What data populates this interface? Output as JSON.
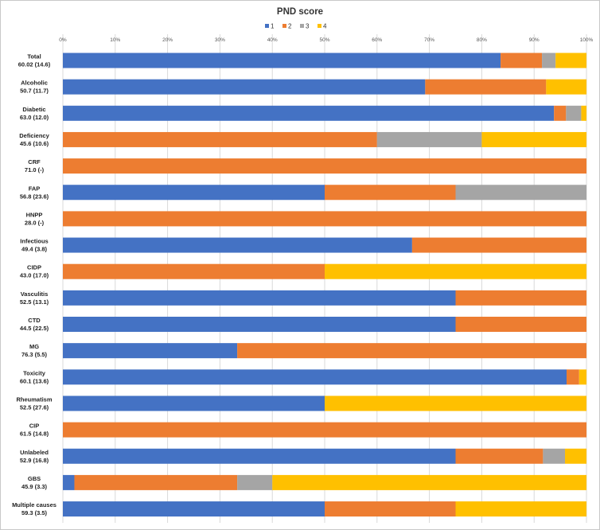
{
  "chart_data": {
    "type": "bar",
    "orientation": "horizontal",
    "stacked": true,
    "normalized": true,
    "title": "PND score",
    "xlabel": "",
    "ylabel": "",
    "xlim": [
      0,
      100
    ],
    "x_ticks": [
      "0%",
      "10%",
      "20%",
      "30%",
      "40%",
      "50%",
      "60%",
      "70%",
      "80%",
      "90%",
      "100%"
    ],
    "grid": true,
    "legend_position": "top",
    "colors": [
      "#4472C4",
      "#ED7D31",
      "#A5A5A5",
      "#FFC000"
    ],
    "categories": [
      {
        "name": "Total",
        "stat": "60.02 (14.6)"
      },
      {
        "name": "Alcoholic",
        "stat": "50.7 (11.7)"
      },
      {
        "name": "Diabetic",
        "stat": "63.0 (12.0)"
      },
      {
        "name": "Deficiency",
        "stat": "45.6 (10.6)"
      },
      {
        "name": "CRF",
        "stat": "71.0 (-)"
      },
      {
        "name": "FAP",
        "stat": "56.8 (23.6)"
      },
      {
        "name": "HNPP",
        "stat": "28.0 (-)"
      },
      {
        "name": "Infectious",
        "stat": "49.4 (3.8)"
      },
      {
        "name": "CIDP",
        "stat": "43.0 (17.0)"
      },
      {
        "name": "Vasculitis",
        "stat": "52.5 (13.1)"
      },
      {
        "name": "CTD",
        "stat": "44.5 (22.5)"
      },
      {
        "name": "MG",
        "stat": "76.3 (5.5)"
      },
      {
        "name": "Toxicity",
        "stat": "60.1 (13.6)"
      },
      {
        "name": "Rheumatism",
        "stat": "52.5 (27.6)"
      },
      {
        "name": "CIP",
        "stat": "61.5 (14.8)"
      },
      {
        "name": "Unlabeled",
        "stat": "52.9 (16.8)"
      },
      {
        "name": "GBS",
        "stat": "45.9 (3.3)"
      },
      {
        "name": "Multiple causes",
        "stat": "59.3 (3.5)"
      }
    ],
    "series": [
      {
        "name": "1",
        "values": [
          83.6,
          69.2,
          93.8,
          0,
          0,
          50,
          0,
          66.7,
          0,
          75,
          75,
          33.3,
          96.2,
          50,
          0,
          75,
          2.2,
          50
        ]
      },
      {
        "name": "2",
        "values": [
          7.9,
          23.1,
          2.3,
          60,
          100,
          25,
          100,
          33.3,
          50,
          25,
          25,
          66.7,
          2.4,
          0,
          100,
          16.7,
          31.1,
          25
        ]
      },
      {
        "name": "3",
        "values": [
          2.6,
          0,
          2.9,
          20,
          0,
          25,
          0,
          0,
          0,
          0,
          0,
          0,
          0,
          0,
          0,
          4.2,
          6.7,
          0
        ]
      },
      {
        "name": "4",
        "values": [
          5.9,
          7.7,
          1.0,
          20,
          0,
          0,
          0,
          0,
          50,
          0,
          0,
          0,
          1.4,
          50,
          0,
          4.1,
          60,
          25
        ]
      }
    ]
  }
}
